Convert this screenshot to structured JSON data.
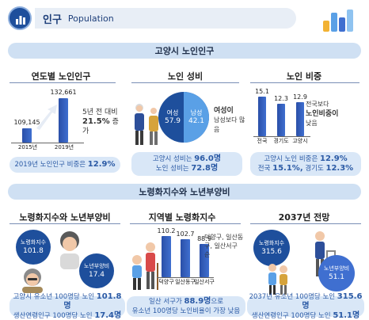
{
  "header": {
    "title_ko": "인구",
    "title_en": "Population"
  },
  "section1": {
    "banner": "고양시 노인인구",
    "yearly": {
      "title": "연도별 노인인구",
      "values": [
        "109,145",
        "132,661"
      ],
      "years": [
        "2015년",
        "2019년"
      ],
      "note_line1": "5년 전 대비",
      "note_pct": "21.5%",
      "note_suffix": "증가",
      "box_text": "2019년 노인인구 비중은",
      "box_value": "12.9%"
    },
    "gender": {
      "title": "노인 성비",
      "female_label": "여성",
      "female_value": "57.9",
      "male_label": "남성",
      "male_value": "42.1",
      "note_bold": "여성이",
      "note_rest": "남성보다 많음",
      "box_line1_text": "고양시 성비는",
      "box_line1_value": "96.0명",
      "box_line2_text": "노인 성비는",
      "box_line2_value": "72.8명"
    },
    "share": {
      "title": "노인 비중",
      "bars": [
        {
          "label": "전국",
          "value": "15.1",
          "v": 15.1
        },
        {
          "label": "경기도",
          "value": "12.3",
          "v": 12.3
        },
        {
          "label": "고양시",
          "value": "12.9",
          "v": 12.9
        }
      ],
      "note1": "전국보다",
      "note2": "노인비중이",
      "note3": "낮음",
      "box_line1_text": "고양시 노인 비중은",
      "box_line1_value": "12.9%",
      "box_line2_text": "전국",
      "box_line2_value1": "15.1%,",
      "box_line2_text2": "경기도",
      "box_line2_value2": "12.3%"
    }
  },
  "section2": {
    "banner": "노령화지수와 노년부양비",
    "index": {
      "title": "노령화지수와 노년부양비",
      "aging_label": "노령화지수",
      "aging_value": "101.8",
      "support_label": "노년부양비",
      "support_value": "17.4",
      "box_line1_text": "고양시 유소년 100명당 노인",
      "box_line1_value": "101.8명",
      "box_line2_text": "생산연령인구 100명당 노인",
      "box_line2_value": "17.4명"
    },
    "regional": {
      "title": "지역별 노령화지수",
      "bars": [
        {
          "label": "덕양구",
          "value": "110.2",
          "v": 110.2
        },
        {
          "label": "일산동구",
          "value": "102.7",
          "v": 102.7
        },
        {
          "label": "일산서구",
          "value": "88.9",
          "v": 88.9
        }
      ],
      "note": "덕양구, 일산동구, 일산서구 순",
      "box_line1_text": "일산 서구가",
      "box_line1_value": "88.9명",
      "box_line1_suffix": "으로",
      "box_line2_text": "유소년 100명당 노인비율이 가장 낮음"
    },
    "forecast": {
      "title": "2037년 전망",
      "aging_label": "노령화지수",
      "aging_value": "315.6",
      "support_label": "노년부양비",
      "support_value": "51.1",
      "box_line1_text": "2037년 유소년 100명당 노인",
      "box_line1_value": "315.6명",
      "box_line2_text": "생산연령인구 100명당 노인",
      "box_line2_value": "51.1명"
    }
  },
  "colors": {
    "navy": "#1e4f9c",
    "blue": "#3f6fd0",
    "light": "#cfe0f3",
    "sky": "#5aa0e6"
  }
}
